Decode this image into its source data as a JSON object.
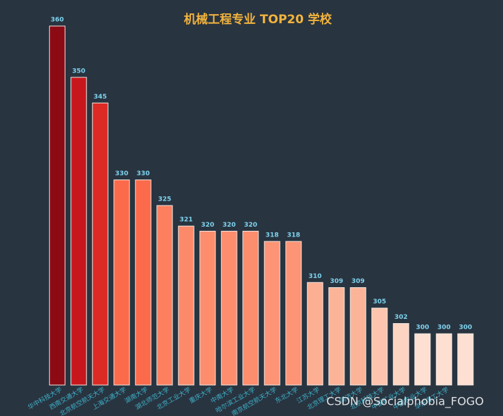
{
  "chart_data": {
    "type": "bar",
    "title": "机械工程专业 TOP20 学校",
    "categories": [
      "华中科技大学",
      "西南交通大学",
      "北京航空航天大学",
      "上海交通大学",
      "湖南大学",
      "湖北师范大学",
      "北京工业大学",
      "重庆大学",
      "中南大学",
      "哈尔滨工业大学",
      "南京航空航天大学",
      "东北大学",
      "江苏大学",
      "北京理工大学",
      "同济大学",
      "北京科技大学",
      "中国矿业大学",
      "中国农业大学",
      "华东理工大学",
      null
    ],
    "values": [
      360,
      350,
      345,
      330,
      330,
      325,
      321,
      320,
      320,
      320,
      318,
      318,
      310,
      309,
      309,
      305,
      302,
      300,
      300,
      300
    ],
    "colors": [
      "#8b0a14",
      "#c8171c",
      "#dc2b24",
      "#fb6a4a",
      "#fb6a4a",
      "#fc7f5f",
      "#fc8a6a",
      "#fc8d6d",
      "#fc8d6d",
      "#fc8d6d",
      "#fc9475",
      "#fc9475",
      "#fcaf93",
      "#fcb499",
      "#fcb499",
      "#fdc5ae",
      "#fdd3c1",
      "#fee0d2",
      "#fee0d2",
      "#fee0d2"
    ],
    "ylim": [
      290,
      360
    ],
    "watermark": "CSDN @Socialphobia_FOGO"
  }
}
